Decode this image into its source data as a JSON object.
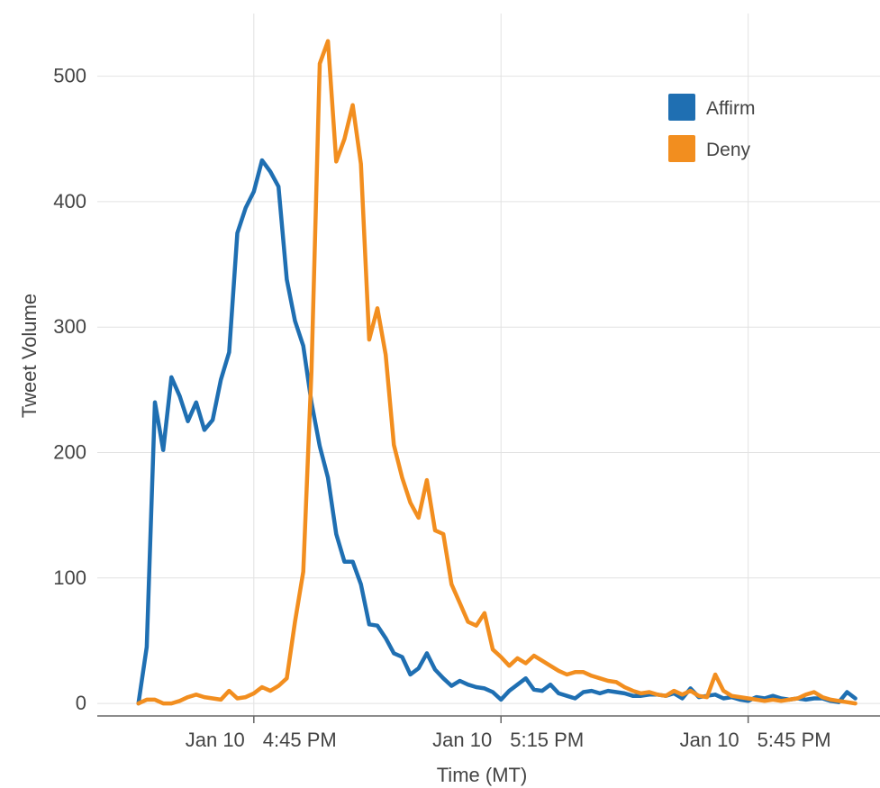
{
  "chart_data": {
    "type": "line",
    "title": "",
    "xlabel": "Time (MT)",
    "ylabel": "Tweet Volume",
    "x_unit": "minutes after 4:31 PM MT, Jan 10",
    "x_range": [
      -5,
      90
    ],
    "ylim": [
      -10,
      550
    ],
    "yticks": [
      0,
      100,
      200,
      300,
      400,
      500
    ],
    "xticks": [
      {
        "x": 14,
        "date": "Jan 10",
        "time": "4:45 PM"
      },
      {
        "x": 44,
        "date": "Jan 10",
        "time": "5:15 PM"
      },
      {
        "x": 74,
        "date": "Jan 10",
        "time": "5:45 PM"
      }
    ],
    "grid": true,
    "legend_position": "top-right",
    "series": [
      {
        "name": "Affirm",
        "color": "#1f6fb2",
        "x": [
          0,
          1,
          2,
          3,
          4,
          5,
          6,
          7,
          8,
          9,
          10,
          11,
          12,
          13,
          14,
          15,
          16,
          17,
          18,
          19,
          20,
          21,
          22,
          23,
          24,
          25,
          26,
          27,
          28,
          29,
          30,
          31,
          32,
          33,
          34,
          35,
          36,
          37,
          38,
          39,
          40,
          41,
          42,
          43,
          44,
          45,
          46,
          47,
          48,
          49,
          50,
          51,
          52,
          53,
          54,
          55,
          56,
          57,
          58,
          59,
          60,
          61,
          62,
          63,
          64,
          65,
          66,
          67,
          68,
          69,
          70,
          71,
          72,
          73,
          74,
          75,
          76,
          77,
          78,
          79,
          80,
          81,
          82,
          83,
          84,
          85,
          86,
          87
        ],
        "y": [
          0,
          45,
          240,
          202,
          260,
          245,
          225,
          240,
          218,
          226,
          258,
          280,
          375,
          395,
          408,
          433,
          424,
          412,
          338,
          305,
          285,
          240,
          205,
          180,
          135,
          113,
          113,
          95,
          63,
          62,
          52,
          40,
          37,
          23,
          28,
          40,
          27,
          20,
          14,
          18,
          15,
          13,
          12,
          9,
          3,
          10,
          15,
          20,
          11,
          10,
          15,
          8,
          6,
          4,
          9,
          10,
          8,
          10,
          9,
          8,
          6,
          6,
          7,
          7,
          6,
          8,
          4,
          12,
          5,
          6,
          7,
          4,
          5,
          3,
          2,
          5,
          4,
          6,
          4,
          3,
          4,
          3,
          4,
          4,
          2,
          1,
          9,
          4
        ]
      },
      {
        "name": "Deny",
        "color": "#f28e1f",
        "x": [
          0,
          1,
          2,
          3,
          4,
          5,
          6,
          7,
          8,
          9,
          10,
          11,
          12,
          13,
          14,
          15,
          16,
          17,
          18,
          19,
          20,
          21,
          22,
          23,
          24,
          25,
          26,
          27,
          28,
          29,
          30,
          31,
          32,
          33,
          34,
          35,
          36,
          37,
          38,
          39,
          40,
          41,
          42,
          43,
          44,
          45,
          46,
          47,
          48,
          49,
          50,
          51,
          52,
          53,
          54,
          55,
          56,
          57,
          58,
          59,
          60,
          61,
          62,
          63,
          64,
          65,
          66,
          67,
          68,
          69,
          70,
          71,
          72,
          73,
          74,
          75,
          76,
          77,
          78,
          79,
          80,
          81,
          82,
          83,
          84,
          85,
          86,
          87
        ],
        "y": [
          0,
          3,
          3,
          0,
          0,
          2,
          5,
          7,
          5,
          4,
          3,
          10,
          4,
          5,
          8,
          13,
          10,
          14,
          20,
          65,
          105,
          265,
          510,
          528,
          432,
          450,
          477,
          430,
          290,
          315,
          278,
          206,
          180,
          160,
          148,
          178,
          138,
          135,
          95,
          80,
          65,
          62,
          72,
          43,
          37,
          30,
          36,
          32,
          38,
          34,
          30,
          26,
          23,
          25,
          25,
          22,
          20,
          18,
          17,
          13,
          10,
          8,
          9,
          7,
          6,
          10,
          7,
          10,
          6,
          5,
          23,
          10,
          6,
          5,
          4,
          3,
          2,
          3,
          2,
          3,
          4,
          7,
          9,
          5,
          3,
          2,
          1,
          0
        ]
      }
    ]
  }
}
